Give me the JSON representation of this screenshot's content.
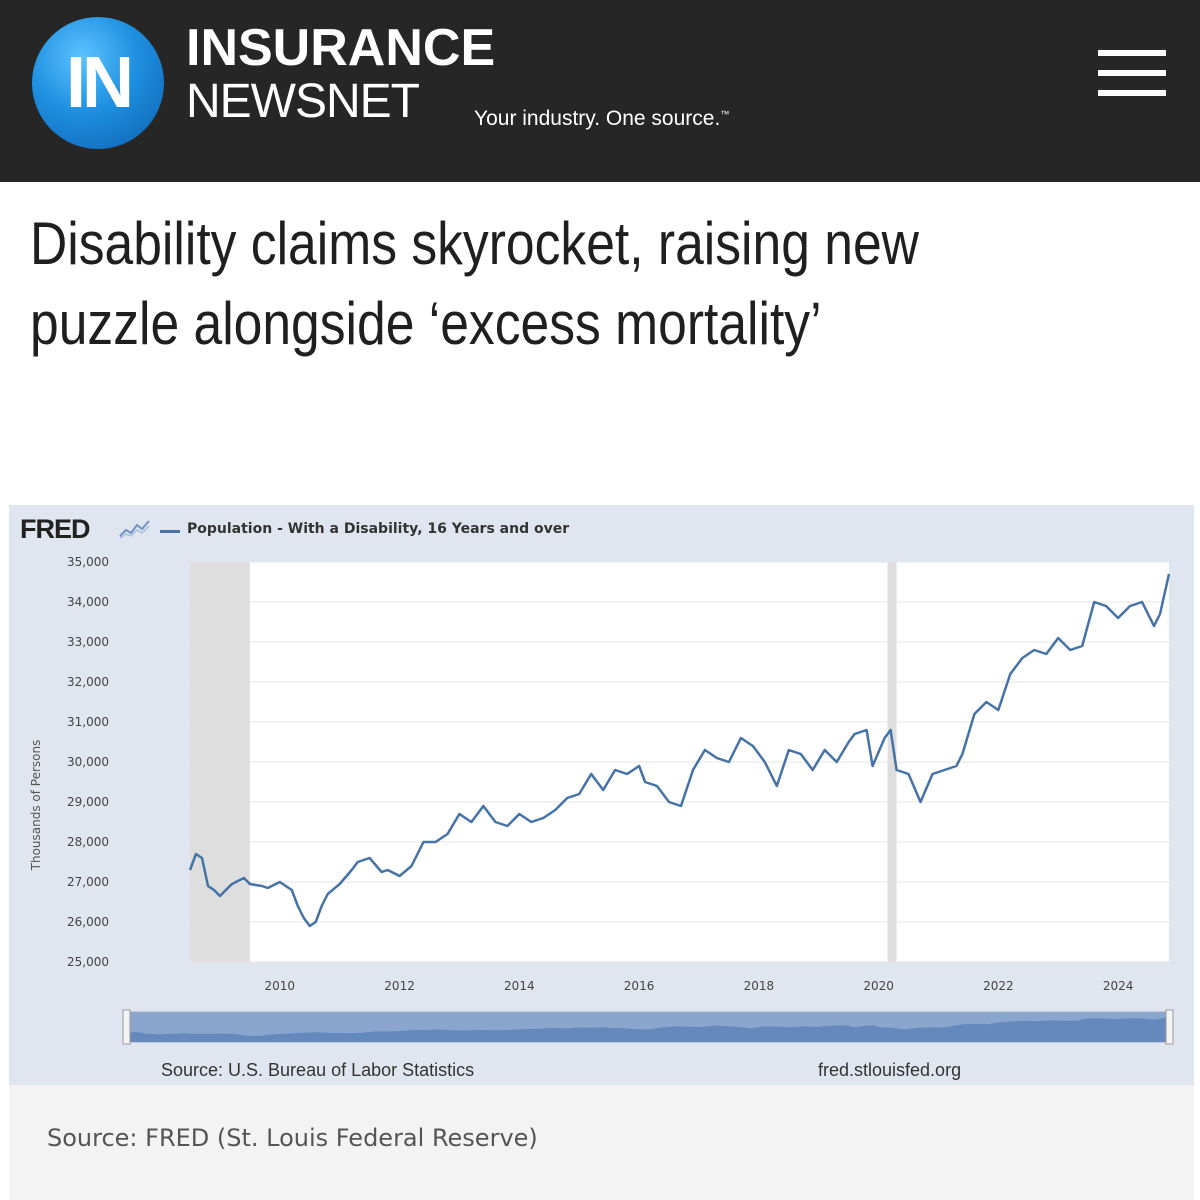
{
  "header": {
    "logo_mark": "IN",
    "brand_top": "INSURANCE",
    "brand_bottom": "NEWSNET",
    "tagline": "Your industry. One source.",
    "tagline_mark": "™",
    "menu_icon": "hamburger-menu-icon",
    "background_color": "#262626",
    "logo_color": "#1e8fe0"
  },
  "article": {
    "headline": "Disability claims skyrocket, raising new puzzle alongside ‘excess mortality’"
  },
  "chart_frame": {
    "logo": "FRED",
    "logo_mark_icon": "fred-sparkline-icon",
    "source": "Source: U.S. Bureau of Labor Statistics",
    "url": "fred.stlouisfed.org",
    "background_color": "#e0e6ef"
  },
  "caption": "Source: FRED (St. Louis Federal Reserve)",
  "chart_data": {
    "type": "line",
    "title": "",
    "ylabel": "Thousands of Persons",
    "xlabel": "",
    "ylim": [
      25000,
      35000
    ],
    "xlim": [
      2008.5,
      2024.85
    ],
    "yticks": [
      25000,
      26000,
      27000,
      28000,
      29000,
      30000,
      31000,
      32000,
      33000,
      34000,
      35000
    ],
    "ytick_labels": [
      "25,000",
      "26,000",
      "27,000",
      "28,000",
      "29,000",
      "30,000",
      "31,000",
      "32,000",
      "33,000",
      "34,000",
      "35,000"
    ],
    "xticks": [
      2010,
      2012,
      2014,
      2016,
      2018,
      2020,
      2022,
      2024
    ],
    "xtick_labels": [
      "2010",
      "2012",
      "2014",
      "2016",
      "2018",
      "2020",
      "2022",
      "2024"
    ],
    "recessions": [
      [
        2008.5,
        2009.5
      ],
      [
        2020.15,
        2020.3
      ]
    ],
    "grid": "horizontal",
    "line_color": "#4572a7",
    "series": [
      {
        "name": "Population - With a Disability, 16 Years and over",
        "x": [
          2008.5,
          2008.6,
          2008.7,
          2008.8,
          2008.9,
          2009.0,
          2009.2,
          2009.4,
          2009.5,
          2009.7,
          2009.8,
          2010.0,
          2010.2,
          2010.3,
          2010.4,
          2010.5,
          2010.6,
          2010.7,
          2010.8,
          2011.0,
          2011.2,
          2011.3,
          2011.5,
          2011.7,
          2011.8,
          2012.0,
          2012.2,
          2012.4,
          2012.6,
          2012.8,
          2013.0,
          2013.2,
          2013.4,
          2013.6,
          2013.8,
          2014.0,
          2014.2,
          2014.4,
          2014.6,
          2014.8,
          2015.0,
          2015.2,
          2015.4,
          2015.6,
          2015.8,
          2016.0,
          2016.1,
          2016.3,
          2016.5,
          2016.7,
          2016.9,
          2017.1,
          2017.3,
          2017.5,
          2017.7,
          2017.9,
          2018.1,
          2018.3,
          2018.5,
          2018.7,
          2018.9,
          2019.1,
          2019.3,
          2019.5,
          2019.6,
          2019.8,
          2019.9,
          2020.1,
          2020.2,
          2020.3,
          2020.5,
          2020.7,
          2020.9,
          2021.1,
          2021.3,
          2021.4,
          2021.6,
          2021.8,
          2022.0,
          2022.2,
          2022.4,
          2022.6,
          2022.8,
          2023.0,
          2023.2,
          2023.4,
          2023.6,
          2023.8,
          2024.0,
          2024.2,
          2024.4,
          2024.6,
          2024.7,
          2024.85
        ],
        "values": [
          27300,
          27700,
          27600,
          26900,
          26800,
          26650,
          26950,
          27100,
          26950,
          26900,
          26850,
          27000,
          26800,
          26400,
          26100,
          25900,
          26000,
          26400,
          26700,
          26950,
          27300,
          27500,
          27600,
          27250,
          27300,
          27150,
          27400,
          28000,
          28000,
          28200,
          28700,
          28500,
          28900,
          28500,
          28400,
          28700,
          28500,
          28600,
          28800,
          29100,
          29200,
          29700,
          29300,
          29800,
          29700,
          29900,
          29500,
          29400,
          29000,
          28900,
          29800,
          30300,
          30100,
          30000,
          30600,
          30400,
          30000,
          29400,
          30300,
          30200,
          29800,
          30300,
          30000,
          30500,
          30700,
          30800,
          29900,
          30600,
          30800,
          29800,
          29700,
          29000,
          29700,
          29800,
          29900,
          30200,
          31200,
          31500,
          31300,
          32200,
          32600,
          32800,
          32700,
          33100,
          32800,
          32900,
          34000,
          33900,
          33600,
          33900,
          34000,
          33400,
          33700,
          34700
        ]
      }
    ]
  }
}
